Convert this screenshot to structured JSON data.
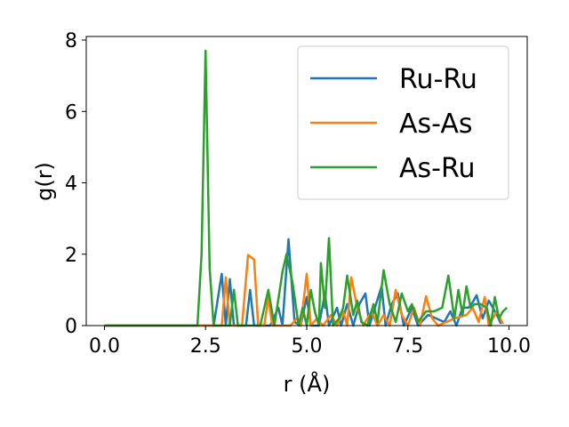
{
  "chart_data": {
    "type": "line",
    "xlabel": "r (Å)",
    "ylabel": "g(r)",
    "xlim": [
      -0.45,
      10.45
    ],
    "ylim": [
      0,
      8.1
    ],
    "x_ticks": [
      "0.0",
      "2.5",
      "5.0",
      "7.5",
      "10.0"
    ],
    "y_ticks": [
      "0",
      "2",
      "4",
      "6",
      "8"
    ],
    "x_tick_values": [
      0,
      2.5,
      5,
      7.5,
      10
    ],
    "y_tick_values": [
      0,
      2,
      4,
      6,
      8
    ],
    "grid": false,
    "legend_position": "top-right",
    "series": [
      {
        "name": "Ru-Ru",
        "color": "#1f77b4",
        "points": [
          [
            0,
            0
          ],
          [
            2.3,
            0
          ],
          [
            2.5,
            0
          ],
          [
            2.7,
            0
          ],
          [
            2.9,
            1.45
          ],
          [
            3.0,
            0
          ],
          [
            3.1,
            1.3
          ],
          [
            3.2,
            0
          ],
          [
            3.5,
            0
          ],
          [
            3.6,
            1.0
          ],
          [
            3.7,
            0
          ],
          [
            4.1,
            0
          ],
          [
            4.3,
            0.5
          ],
          [
            4.4,
            0
          ],
          [
            4.55,
            2.42
          ],
          [
            4.7,
            0.1
          ],
          [
            4.85,
            0
          ],
          [
            5.0,
            0.8
          ],
          [
            5.1,
            0
          ],
          [
            5.3,
            0
          ],
          [
            5.45,
            0.9
          ],
          [
            5.55,
            0
          ],
          [
            5.75,
            0.5
          ],
          [
            5.85,
            0
          ],
          [
            6.0,
            0.6
          ],
          [
            6.15,
            0
          ],
          [
            6.3,
            0.6
          ],
          [
            6.45,
            0.9
          ],
          [
            6.55,
            0
          ],
          [
            6.85,
            1.1
          ],
          [
            6.95,
            0
          ],
          [
            7.1,
            0.6
          ],
          [
            7.25,
            0.9
          ],
          [
            7.4,
            0
          ],
          [
            7.6,
            0.5
          ],
          [
            7.75,
            0
          ],
          [
            8.0,
            0.3
          ],
          [
            8.2,
            0.2
          ],
          [
            8.4,
            0.1
          ],
          [
            8.55,
            0.4
          ],
          [
            8.7,
            0
          ],
          [
            8.85,
            0.5
          ],
          [
            9.0,
            0.5
          ],
          [
            9.1,
            0.65
          ],
          [
            9.2,
            0.85
          ],
          [
            9.35,
            0.2
          ],
          [
            9.5,
            0.7
          ],
          [
            9.7,
            0.3
          ],
          [
            9.8,
            0.05
          ]
        ]
      },
      {
        "name": "As-As",
        "color": "#ff7f0e",
        "points": [
          [
            0,
            0
          ],
          [
            2.5,
            0
          ],
          [
            2.9,
            0
          ],
          [
            3.0,
            1.35
          ],
          [
            3.1,
            0
          ],
          [
            3.4,
            0
          ],
          [
            3.55,
            1.98
          ],
          [
            3.7,
            1.85
          ],
          [
            3.8,
            0
          ],
          [
            3.95,
            0
          ],
          [
            4.05,
            0.8
          ],
          [
            4.15,
            0
          ],
          [
            4.6,
            0
          ],
          [
            4.75,
            0.2
          ],
          [
            4.85,
            0
          ],
          [
            5.0,
            1.45
          ],
          [
            5.1,
            0
          ],
          [
            5.25,
            0.2
          ],
          [
            5.4,
            0
          ],
          [
            5.6,
            0.3
          ],
          [
            5.75,
            0
          ],
          [
            5.9,
            0.4
          ],
          [
            6.0,
            0
          ],
          [
            6.1,
            1.35
          ],
          [
            6.25,
            0.5
          ],
          [
            6.4,
            0
          ],
          [
            6.6,
            0.4
          ],
          [
            6.75,
            0
          ],
          [
            6.9,
            0.3
          ],
          [
            7.05,
            0
          ],
          [
            7.2,
            1.0
          ],
          [
            7.35,
            0.3
          ],
          [
            7.5,
            0
          ],
          [
            7.65,
            0.5
          ],
          [
            7.8,
            0
          ],
          [
            7.95,
            0.82
          ],
          [
            8.1,
            0.2
          ],
          [
            8.25,
            0
          ],
          [
            8.45,
            0.1
          ],
          [
            8.65,
            0.2
          ],
          [
            8.8,
            0.25
          ],
          [
            8.95,
            0.3
          ],
          [
            9.1,
            0.5
          ],
          [
            9.25,
            0.1
          ],
          [
            9.4,
            0.8
          ],
          [
            9.5,
            0
          ],
          [
            9.7,
            0.4
          ],
          [
            9.85,
            0.05
          ]
        ]
      },
      {
        "name": "As-Ru",
        "color": "#2ca02c",
        "points": [
          [
            0,
            0
          ],
          [
            2.3,
            0
          ],
          [
            2.4,
            2.0
          ],
          [
            2.5,
            7.7
          ],
          [
            2.6,
            1.6
          ],
          [
            2.7,
            0
          ],
          [
            3.1,
            0
          ],
          [
            3.2,
            1.0
          ],
          [
            3.3,
            0
          ],
          [
            3.85,
            0
          ],
          [
            4.05,
            1.0
          ],
          [
            4.2,
            0
          ],
          [
            4.4,
            1.5
          ],
          [
            4.5,
            2.0
          ],
          [
            4.65,
            1.2
          ],
          [
            4.8,
            0
          ],
          [
            4.9,
            0.5
          ],
          [
            5.0,
            0
          ],
          [
            5.1,
            1.0
          ],
          [
            5.2,
            0.4
          ],
          [
            5.3,
            0
          ],
          [
            5.35,
            1.75
          ],
          [
            5.45,
            0.5
          ],
          [
            5.55,
            2.45
          ],
          [
            5.65,
            0
          ],
          [
            5.8,
            0.2
          ],
          [
            5.9,
            0.5
          ],
          [
            6.0,
            1.4
          ],
          [
            6.15,
            0.3
          ],
          [
            6.25,
            0.7
          ],
          [
            6.35,
            0.1
          ],
          [
            6.5,
            0
          ],
          [
            6.65,
            0.6
          ],
          [
            6.75,
            0.1
          ],
          [
            6.9,
            1.55
          ],
          [
            7.05,
            0.6
          ],
          [
            7.2,
            0.1
          ],
          [
            7.35,
            0.9
          ],
          [
            7.5,
            0.4
          ],
          [
            7.6,
            0.6
          ],
          [
            7.75,
            0.1
          ],
          [
            7.95,
            0.4
          ],
          [
            8.15,
            0.4
          ],
          [
            8.35,
            0.5
          ],
          [
            8.5,
            1.4
          ],
          [
            8.65,
            0.2
          ],
          [
            8.75,
            1.0
          ],
          [
            8.85,
            0.3
          ],
          [
            8.95,
            1.1
          ],
          [
            9.05,
            0.5
          ],
          [
            9.15,
            0.6
          ],
          [
            9.3,
            0.6
          ],
          [
            9.45,
            0.5
          ],
          [
            9.55,
            0
          ],
          [
            9.65,
            0.8
          ],
          [
            9.75,
            0.2
          ],
          [
            9.85,
            0.4
          ],
          [
            9.95,
            0.5
          ]
        ]
      }
    ]
  }
}
